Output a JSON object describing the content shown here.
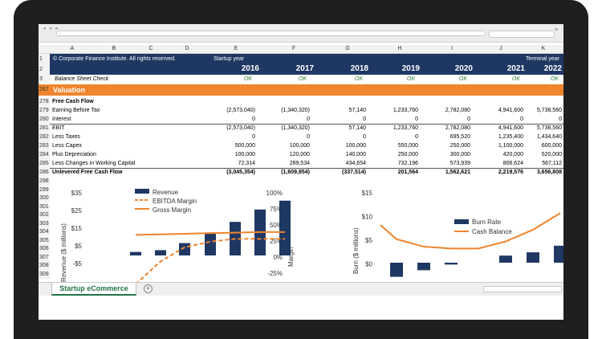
{
  "browser": {
    "address": "-"
  },
  "columns": [
    "A",
    "B",
    "C",
    "D",
    "E",
    "F",
    "G",
    "H",
    "I",
    "J",
    "K"
  ],
  "header": {
    "copyright": "© Corporate Finance Institute. All rights reserved.",
    "startup_label": "Startup year",
    "terminal_label": "Terminal year",
    "years": [
      "2016",
      "2017",
      "2018",
      "2019",
      "2020",
      "2021",
      "2022"
    ]
  },
  "balance_check": {
    "label": "Balance Sheet Check",
    "values": [
      "OK",
      "OK",
      "OK",
      "OK",
      "OK",
      "OK",
      "OK"
    ]
  },
  "valuation": {
    "label": "Valuation"
  },
  "rows": [
    {
      "num": "278",
      "label": "Free Cash Flow",
      "values": [],
      "bold": true
    },
    {
      "num": "279",
      "label": "Earning Before Tax",
      "values": [
        "(2,573,040)",
        "(1,340,320)",
        "57,140",
        "1,233,760",
        "2,782,080",
        "4,941,600",
        "5,738,560"
      ]
    },
    {
      "num": "280",
      "label": "Interest",
      "values": [
        "0",
        "0",
        "0",
        "0",
        "0",
        "0",
        "0"
      ]
    },
    {
      "num": "281",
      "label": "EBIT",
      "values": [
        "(2,573,040)",
        "(1,340,320)",
        "57,140",
        "1,233,760",
        "2,782,080",
        "4,941,600",
        "5,738,560"
      ]
    },
    {
      "num": "282",
      "label": "Less Taxes",
      "values": [
        "0",
        "0",
        "0",
        "0",
        "695,520",
        "1,235,400",
        "1,434,640"
      ]
    },
    {
      "num": "283",
      "label": "Less Capex",
      "values": [
        "500,000",
        "100,000",
        "100,000",
        "550,000",
        "250,000",
        "1,100,000",
        "600,000"
      ]
    },
    {
      "num": "284",
      "label": "Plus Depreciation",
      "values": [
        "100,000",
        "120,000",
        "140,000",
        "250,000",
        "300,000",
        "420,000",
        "520,000"
      ]
    },
    {
      "num": "285",
      "label": "Less Changes in Working Capital",
      "values": [
        "72,314",
        "289,534",
        "434,654",
        "732,196",
        "573,939",
        "806,624",
        "567,112"
      ]
    },
    {
      "num": "286",
      "label": "Unlevered Free Cash Flow",
      "values": [
        "(3,045,354)",
        "(1,609,854)",
        "(337,514)",
        "201,564",
        "1,562,621",
        "2,219,576",
        "3,656,808"
      ],
      "bold": true
    }
  ],
  "chart_row_nums": [
    "298",
    "299",
    "300",
    "301",
    "302",
    "303",
    "304",
    "305",
    "306",
    "307",
    "308",
    "309"
  ],
  "chart_data": [
    {
      "type": "bar",
      "ylabel": "Revenue ($ millions)",
      "y2label": "Margin",
      "y_ticks": [
        "$35",
        "$25",
        "$15",
        "$5",
        "-$5"
      ],
      "y2_ticks": [
        "100%",
        "75%",
        "50%",
        "25%",
        "0%",
        "-25%"
      ],
      "ylim": [
        -5,
        35
      ],
      "y2lim": [
        -25,
        100
      ],
      "series": [
        {
          "name": "Revenue",
          "kind": "bar",
          "values": [
            2,
            3,
            7,
            13,
            19,
            26,
            31
          ]
        },
        {
          "name": "EBITDA Margin",
          "kind": "dashed-line",
          "values": [
            -60,
            -20,
            5,
            15,
            20,
            20,
            20
          ]
        },
        {
          "name": "Gross Margin",
          "kind": "line",
          "values": [
            27,
            28,
            29,
            30,
            31,
            32,
            32
          ]
        }
      ],
      "colors": {
        "bar": "#1f3863",
        "line": "#f0852d"
      }
    },
    {
      "type": "bar",
      "ylabel": "Burn ($ millions)",
      "y_ticks": [
        "$15",
        "$10",
        "$5",
        "$0"
      ],
      "ylim": [
        -3,
        15
      ],
      "series": [
        {
          "name": "Burn Rate",
          "kind": "bar",
          "values": [
            -3,
            -1.6,
            -0.4,
            0,
            1.5,
            2.2,
            3.6
          ]
        },
        {
          "name": "Cash Balance",
          "kind": "line",
          "values": [
            8,
            5,
            3.4,
            3,
            3,
            4.5,
            7,
            10.5
          ]
        }
      ],
      "colors": {
        "bar": "#1f3863",
        "line": "#f0852d"
      }
    }
  ],
  "tabs": {
    "sheet": "Startup eCommerce",
    "add": "+"
  }
}
